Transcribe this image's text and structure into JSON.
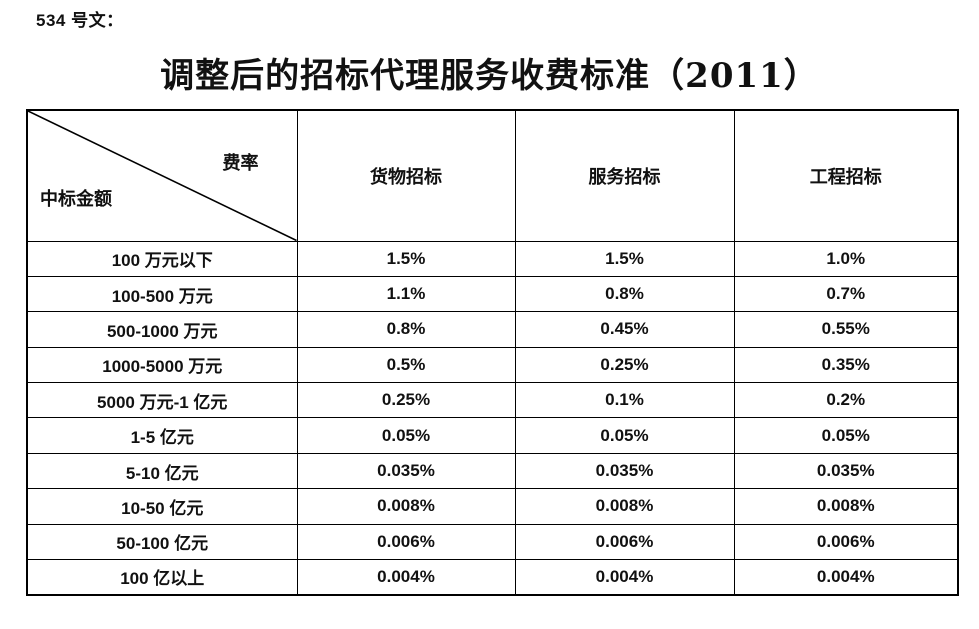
{
  "doc_label": "534 号文：",
  "title": "调整后的招标代理服务收费标准（2011）",
  "colors": {
    "text": "#111111",
    "border": "#000000",
    "background": "#ffffff"
  },
  "table": {
    "corner": {
      "top_right": "费率",
      "bottom_left": "中标金额"
    },
    "columns": [
      "货物招标",
      "服务招标",
      "工程招标"
    ],
    "rows": [
      {
        "label": "100 万元以下",
        "values": [
          "1.5%",
          "1.5%",
          "1.0%"
        ]
      },
      {
        "label": "100-500 万元",
        "values": [
          "1.1%",
          "0.8%",
          "0.7%"
        ]
      },
      {
        "label": "500-1000 万元",
        "values": [
          "0.8%",
          "0.45%",
          "0.55%"
        ]
      },
      {
        "label": "1000-5000 万元",
        "values": [
          "0.5%",
          "0.25%",
          "0.35%"
        ]
      },
      {
        "label": "5000 万元-1 亿元",
        "values": [
          "0.25%",
          "0.1%",
          "0.2%"
        ]
      },
      {
        "label": "1-5 亿元",
        "values": [
          "0.05%",
          "0.05%",
          "0.05%"
        ]
      },
      {
        "label": "5-10 亿元",
        "values": [
          "0.035%",
          "0.035%",
          "0.035%"
        ]
      },
      {
        "label": "10-50 亿元",
        "values": [
          "0.008%",
          "0.008%",
          "0.008%"
        ]
      },
      {
        "label": "50-100 亿元",
        "values": [
          "0.006%",
          "0.006%",
          "0.006%"
        ]
      },
      {
        "label": "100 亿以上",
        "values": [
          "0.004%",
          "0.004%",
          "0.004%"
        ]
      }
    ]
  }
}
